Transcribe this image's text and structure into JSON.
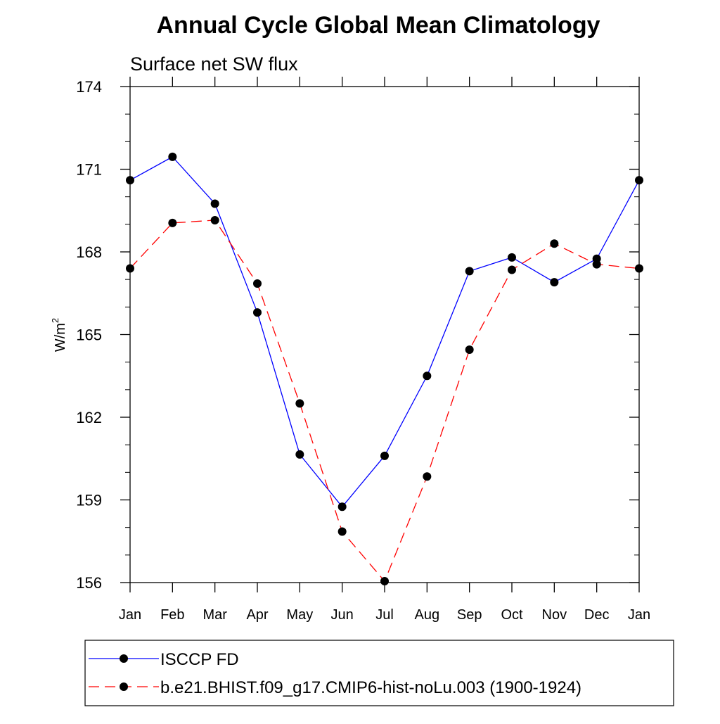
{
  "chart_data": {
    "type": "line",
    "title": "Annual Cycle Global Mean Climatology",
    "subtitle": "Surface net SW flux",
    "xlabel": "",
    "ylabel": "W/m",
    "ylabel_superscript": "2",
    "categories": [
      "Jan",
      "Feb",
      "Mar",
      "Apr",
      "May",
      "Jun",
      "Jul",
      "Aug",
      "Sep",
      "Oct",
      "Nov",
      "Dec",
      "Jan"
    ],
    "ylim": [
      156,
      174
    ],
    "yticks": [
      156,
      159,
      162,
      165,
      168,
      171,
      174
    ],
    "grid": false,
    "legend_position": "bottom",
    "series": [
      {
        "name": "ISCCP FD",
        "color": "#0000ff",
        "line_style": "solid",
        "marker": "filled-circle",
        "values": [
          170.6,
          171.45,
          169.75,
          165.8,
          160.65,
          158.75,
          160.6,
          163.5,
          167.3,
          167.8,
          166.9,
          167.75,
          170.6
        ]
      },
      {
        "name": "b.e21.BHIST.f09_g17.CMIP6-hist-noLu.003 (1900-1924)",
        "color": "#ff0000",
        "line_style": "dashed",
        "marker": "filled-circle",
        "values": [
          167.4,
          169.05,
          169.15,
          166.85,
          162.5,
          157.85,
          156.05,
          159.85,
          164.45,
          167.35,
          168.3,
          167.55,
          167.4
        ]
      }
    ]
  }
}
